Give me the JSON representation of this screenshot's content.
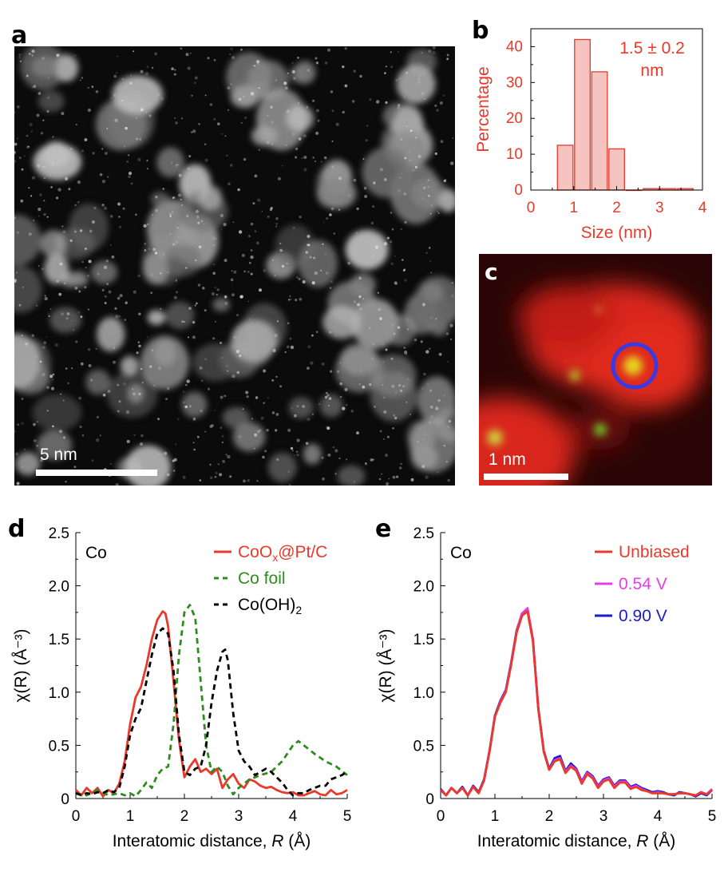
{
  "panels": {
    "a": {
      "label": "a",
      "scalebar": "5 nm"
    },
    "b": {
      "label": "b"
    },
    "c": {
      "label": "c",
      "scalebar": "1 nm"
    },
    "d": {
      "label": "d"
    },
    "e": {
      "label": "e"
    }
  },
  "colors": {
    "red": "#e8392b",
    "green": "#2e8b1e",
    "black": "#000000",
    "magenta": "#e83ce8",
    "blue": "#1a1ad0",
    "hist_fill": "#f6c4c0",
    "hist_edge": "#e8392b"
  },
  "chart_data": [
    {
      "panel": "b",
      "type": "bar",
      "xlabel": "Size (nm)",
      "ylabel": "Percentage",
      "annotation": [
        "1.5 ± 0.2",
        "nm"
      ],
      "xlim": [
        0,
        4
      ],
      "ylim": [
        0,
        45
      ],
      "xticks": [
        0,
        1,
        2,
        3,
        4
      ],
      "yticks": [
        0,
        10,
        20,
        30,
        40
      ],
      "bin_width": 0.4,
      "bins": [
        {
          "center": 0.8,
          "value": 12.5
        },
        {
          "center": 1.2,
          "value": 42
        },
        {
          "center": 1.6,
          "value": 33
        },
        {
          "center": 2.0,
          "value": 11.5
        },
        {
          "center": 2.4,
          "value": 0
        },
        {
          "center": 2.8,
          "value": 0.4
        },
        {
          "center": 3.2,
          "value": 0.4
        },
        {
          "center": 3.6,
          "value": 0.4
        }
      ]
    },
    {
      "panel": "d",
      "type": "line",
      "xlabel": "Interatomic distance, R (Å)",
      "ylabel": "χ(R) (Å⁻³)",
      "corner_text": "Co",
      "xlim": [
        0,
        5
      ],
      "ylim": [
        0,
        2.5
      ],
      "xticks": [
        0,
        1,
        2,
        3,
        4,
        5
      ],
      "yticks": [
        0,
        0.5,
        1.0,
        1.5,
        2.0,
        2.5
      ],
      "ytick_labels": [
        "0",
        "0.5",
        "1.0",
        "1.5",
        "2.0",
        "2.5"
      ],
      "series": [
        {
          "name": "CoOx@Pt/C",
          "legend_main": "CoO",
          "legend_sub": "x",
          "legend_rest": "@Pt/C",
          "color": "#e8392b",
          "dash": "solid",
          "x": [
            0,
            0.1,
            0.2,
            0.3,
            0.4,
            0.5,
            0.6,
            0.7,
            0.8,
            0.9,
            1.0,
            1.1,
            1.2,
            1.3,
            1.4,
            1.5,
            1.6,
            1.65,
            1.7,
            1.8,
            1.9,
            2.0,
            2.1,
            2.2,
            2.3,
            2.4,
            2.5,
            2.6,
            2.7,
            2.8,
            2.9,
            3.0,
            3.1,
            3.2,
            3.3,
            3.4,
            3.5,
            3.6,
            3.7,
            3.8,
            3.9,
            4.0,
            4.1,
            4.2,
            4.3,
            4.4,
            4.5,
            4.6,
            4.7,
            4.8,
            4.9,
            5.0
          ],
          "y": [
            0.08,
            0.03,
            0.1,
            0.05,
            0.1,
            0.02,
            0.08,
            0.05,
            0.14,
            0.35,
            0.7,
            0.95,
            1.05,
            1.25,
            1.5,
            1.68,
            1.76,
            1.74,
            1.62,
            1.1,
            0.55,
            0.2,
            0.3,
            0.37,
            0.25,
            0.28,
            0.23,
            0.28,
            0.1,
            0.18,
            0.23,
            0.14,
            0.1,
            0.18,
            0.16,
            0.12,
            0.1,
            0.11,
            0.08,
            0.06,
            0.05,
            0.06,
            0.03,
            0.03,
            0.05,
            0.07,
            0.04,
            0.03,
            0.08,
            0.04,
            0.05,
            0.08
          ]
        },
        {
          "name": "Co foil",
          "legend_main": "Co foil",
          "color": "#2e8b1e",
          "dash": "dashed",
          "x": [
            0,
            0.2,
            0.4,
            0.6,
            0.8,
            0.9,
            1.0,
            1.1,
            1.2,
            1.3,
            1.4,
            1.5,
            1.6,
            1.7,
            1.8,
            1.9,
            2.0,
            2.1,
            2.2,
            2.3,
            2.4,
            2.5,
            2.6,
            2.7,
            2.8,
            2.9,
            3.0,
            3.2,
            3.4,
            3.6,
            3.8,
            4.0,
            4.1,
            4.2,
            4.4,
            4.6,
            4.8,
            5.0
          ],
          "y": [
            0.05,
            0.03,
            0.08,
            0.03,
            0.05,
            0.03,
            0.05,
            0.02,
            0.08,
            0.15,
            0.1,
            0.22,
            0.28,
            0.3,
            0.7,
            1.35,
            1.75,
            1.82,
            1.7,
            1.1,
            0.5,
            0.25,
            0.3,
            0.25,
            0.12,
            0.04,
            0.1,
            0.18,
            0.22,
            0.25,
            0.35,
            0.5,
            0.54,
            0.5,
            0.42,
            0.35,
            0.3,
            0.22
          ]
        },
        {
          "name": "Co(OH)2",
          "legend_main": "Co(OH)",
          "legend_sub": "2",
          "color": "#000000",
          "dash": "dashed",
          "x": [
            0,
            0.1,
            0.2,
            0.3,
            0.4,
            0.5,
            0.6,
            0.7,
            0.8,
            0.9,
            1.0,
            1.1,
            1.2,
            1.3,
            1.4,
            1.5,
            1.6,
            1.7,
            1.8,
            1.9,
            2.0,
            2.1,
            2.2,
            2.3,
            2.4,
            2.5,
            2.6,
            2.7,
            2.75,
            2.8,
            2.9,
            3.0,
            3.1,
            3.2,
            3.3,
            3.4,
            3.5,
            3.6,
            3.7,
            3.8,
            3.9,
            4.0,
            4.1,
            4.2,
            4.3,
            4.4,
            4.5,
            4.6,
            4.7,
            4.8,
            4.9,
            5.0
          ],
          "y": [
            0.05,
            0.03,
            0.05,
            0.04,
            0.06,
            0.05,
            0.08,
            0.06,
            0.1,
            0.3,
            0.6,
            0.75,
            0.85,
            1.1,
            1.35,
            1.55,
            1.6,
            1.55,
            1.2,
            0.6,
            0.25,
            0.22,
            0.28,
            0.3,
            0.5,
            0.9,
            1.2,
            1.38,
            1.4,
            1.3,
            0.8,
            0.45,
            0.35,
            0.3,
            0.22,
            0.25,
            0.28,
            0.25,
            0.2,
            0.15,
            0.08,
            0.03,
            0.05,
            0.05,
            0.08,
            0.1,
            0.12,
            0.12,
            0.18,
            0.2,
            0.22,
            0.25
          ]
        }
      ]
    },
    {
      "panel": "e",
      "type": "line",
      "xlabel": "Interatomic distance, R (Å)",
      "ylabel": "χ(R) (Å⁻³)",
      "corner_text": "Co",
      "xlim": [
        0,
        5
      ],
      "ylim": [
        0,
        2.5
      ],
      "xticks": [
        0,
        1,
        2,
        3,
        4,
        5
      ],
      "yticks": [
        0,
        0.5,
        1.0,
        1.5,
        2.0,
        2.5
      ],
      "ytick_labels": [
        "0",
        "0.5",
        "1.0",
        "1.5",
        "2.0",
        "2.5"
      ],
      "series": [
        {
          "name": "0.90 V",
          "legend_main": "0.90 V",
          "color": "#1a1ad0",
          "dash": "solid",
          "x": [
            0,
            0.1,
            0.2,
            0.3,
            0.4,
            0.5,
            0.6,
            0.7,
            0.8,
            0.9,
            1.0,
            1.1,
            1.2,
            1.3,
            1.4,
            1.5,
            1.6,
            1.7,
            1.8,
            1.9,
            2.0,
            2.1,
            2.2,
            2.3,
            2.4,
            2.5,
            2.6,
            2.7,
            2.8,
            2.9,
            3.0,
            3.1,
            3.2,
            3.3,
            3.4,
            3.5,
            3.6,
            3.7,
            3.8,
            3.9,
            4.0,
            4.1,
            4.2,
            4.3,
            4.4,
            4.5,
            4.6,
            4.7,
            4.8,
            4.9,
            5.0
          ],
          "y": [
            0.09,
            0.03,
            0.1,
            0.05,
            0.11,
            0.03,
            0.12,
            0.06,
            0.18,
            0.45,
            0.78,
            0.92,
            1.02,
            1.28,
            1.58,
            1.74,
            1.78,
            1.5,
            0.85,
            0.45,
            0.28,
            0.38,
            0.4,
            0.26,
            0.33,
            0.28,
            0.16,
            0.25,
            0.21,
            0.12,
            0.18,
            0.2,
            0.12,
            0.17,
            0.17,
            0.11,
            0.13,
            0.1,
            0.08,
            0.06,
            0.07,
            0.06,
            0.04,
            0.03,
            0.06,
            0.05,
            0.04,
            0.02,
            0.05,
            0.03,
            0.08
          ]
        },
        {
          "name": "0.54 V",
          "legend_main": "0.54 V",
          "color": "#e83ce8",
          "dash": "solid",
          "x": [
            0,
            0.1,
            0.2,
            0.3,
            0.4,
            0.5,
            0.6,
            0.7,
            0.8,
            0.9,
            1.0,
            1.1,
            1.2,
            1.3,
            1.4,
            1.5,
            1.6,
            1.7,
            1.8,
            1.9,
            2.0,
            2.1,
            2.2,
            2.3,
            2.4,
            2.5,
            2.6,
            2.7,
            2.8,
            2.9,
            3.0,
            3.1,
            3.2,
            3.3,
            3.4,
            3.5,
            3.6,
            3.7,
            3.8,
            3.9,
            4.0,
            4.1,
            4.2,
            4.3,
            4.4,
            4.5,
            4.6,
            4.7,
            4.8,
            4.9,
            5.0
          ],
          "y": [
            0.08,
            0.03,
            0.1,
            0.05,
            0.1,
            0.03,
            0.11,
            0.05,
            0.17,
            0.44,
            0.77,
            0.91,
            1.01,
            1.27,
            1.57,
            1.74,
            1.79,
            1.49,
            0.84,
            0.44,
            0.27,
            0.36,
            0.38,
            0.25,
            0.31,
            0.27,
            0.15,
            0.24,
            0.2,
            0.11,
            0.17,
            0.19,
            0.11,
            0.16,
            0.16,
            0.1,
            0.12,
            0.09,
            0.07,
            0.05,
            0.06,
            0.05,
            0.04,
            0.04,
            0.05,
            0.05,
            0.04,
            0.03,
            0.06,
            0.04,
            0.09
          ]
        },
        {
          "name": "Unbiased",
          "legend_main": "Unbiased",
          "color": "#e8392b",
          "dash": "solid",
          "x": [
            0,
            0.1,
            0.2,
            0.3,
            0.4,
            0.5,
            0.6,
            0.7,
            0.8,
            0.9,
            1.0,
            1.1,
            1.2,
            1.3,
            1.4,
            1.5,
            1.6,
            1.7,
            1.8,
            1.9,
            2.0,
            2.1,
            2.2,
            2.3,
            2.4,
            2.5,
            2.6,
            2.7,
            2.8,
            2.9,
            3.0,
            3.1,
            3.2,
            3.3,
            3.4,
            3.5,
            3.6,
            3.7,
            3.8,
            3.9,
            4.0,
            4.1,
            4.2,
            4.3,
            4.4,
            4.5,
            4.6,
            4.7,
            4.8,
            4.9,
            5.0
          ],
          "y": [
            0.08,
            0.03,
            0.1,
            0.05,
            0.1,
            0.03,
            0.11,
            0.05,
            0.17,
            0.44,
            0.77,
            0.9,
            1.0,
            1.26,
            1.56,
            1.72,
            1.76,
            1.48,
            0.84,
            0.44,
            0.27,
            0.35,
            0.37,
            0.24,
            0.3,
            0.26,
            0.14,
            0.23,
            0.19,
            0.1,
            0.16,
            0.18,
            0.1,
            0.15,
            0.15,
            0.09,
            0.11,
            0.08,
            0.07,
            0.05,
            0.05,
            0.05,
            0.04,
            0.04,
            0.05,
            0.05,
            0.04,
            0.03,
            0.06,
            0.04,
            0.08
          ]
        }
      ],
      "legend_order": [
        "Unbiased",
        "0.54 V",
        "0.90 V"
      ]
    }
  ]
}
